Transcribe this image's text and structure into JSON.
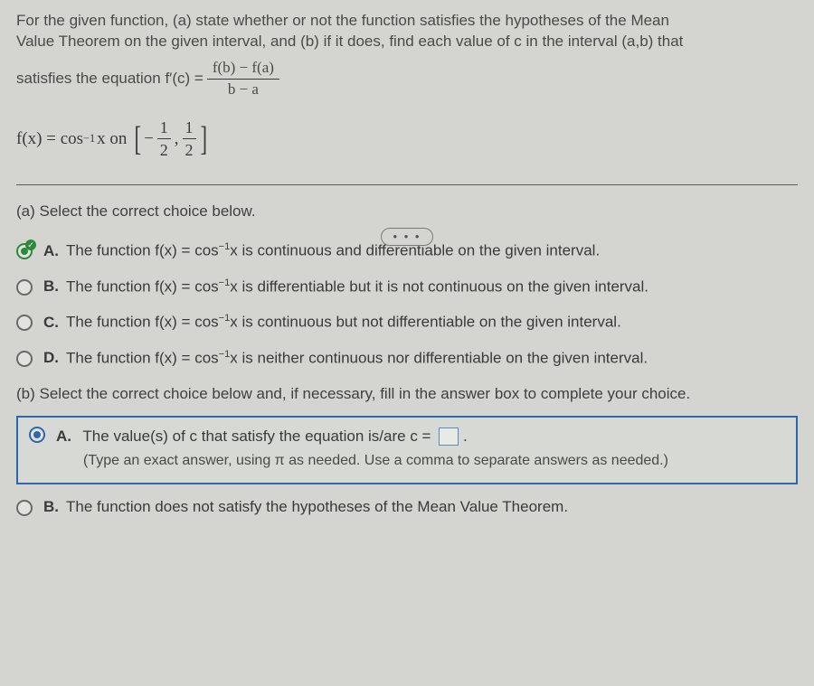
{
  "problem": {
    "line1": "For the given function, (a) state whether or not the function satisfies the hypotheses of the Mean",
    "line2": "Value Theorem on the given interval, and (b) if it does, find each value of c in the interval (a,b) that",
    "line3_prefix": "satisfies the equation f′(c) =",
    "frac_num": "f(b) − f(a)",
    "frac_den": "b − a",
    "fn_left": "f(x) = cos",
    "fn_exp": "−1",
    "fn_mid": "x on",
    "interval_a_neg": "−",
    "interval_a_num": "1",
    "interval_a_den": "2",
    "interval_sep": ",",
    "interval_b_num": "1",
    "interval_b_den": "2"
  },
  "ellipsis": "• • •",
  "partA": {
    "prompt": "(a) Select the correct choice below.",
    "choices": [
      {
        "letter": "A.",
        "pre": "The function f(x) = cos",
        "exp": "−1",
        "post": "x is continuous and differentiable on the given interval.",
        "selected": true,
        "correct": true
      },
      {
        "letter": "B.",
        "pre": "The function f(x) = cos",
        "exp": "−1",
        "post": "x is differentiable but it is not continuous on the given interval.",
        "selected": false,
        "correct": false
      },
      {
        "letter": "C.",
        "pre": "The function f(x) = cos",
        "exp": "−1",
        "post": "x is continuous but not differentiable on the given interval.",
        "selected": false,
        "correct": false
      },
      {
        "letter": "D.",
        "pre": "The function f(x) = cos",
        "exp": "−1",
        "post": "x is neither continuous nor differentiable on the given interval.",
        "selected": false,
        "correct": false
      }
    ]
  },
  "partB": {
    "prompt": "(b) Select the correct choice below and, if necessary, fill in the answer box to complete your choice.",
    "choiceA": {
      "letter": "A.",
      "text": "The value(s) of c that satisfy the equation is/are c =",
      "hint": "(Type an exact answer, using π as needed. Use a comma to separate answers as needed.)"
    },
    "choiceB": {
      "letter": "B.",
      "text": "The function does not satisfy the hypotheses of the Mean Value Theorem."
    }
  },
  "colors": {
    "background": "#d4d5d0",
    "text": "#3a3a3a",
    "accent_blue": "#2e66b0",
    "accent_green": "#2a8a3a",
    "border_gray": "#5b5b58"
  }
}
